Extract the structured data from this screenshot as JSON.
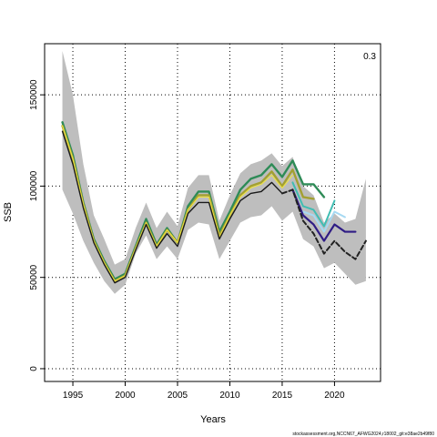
{
  "chart_data": {
    "type": "line",
    "title": "",
    "panel_label": "0.3",
    "xlabel": "Years",
    "ylabel": "SSB",
    "xlim": [
      1992.3,
      2024.4
    ],
    "ylim": [
      -7000,
      178000
    ],
    "x_ticks": [
      1995,
      2000,
      2005,
      2010,
      2015,
      2020
    ],
    "y_ticks": [
      0,
      50000,
      100000,
      150000
    ],
    "grid": "dotted",
    "legend": "none",
    "footnote": "stockassessment.org,NCCN67_AFWG2024,r18002_git:e38ae2b49f80",
    "band": {
      "color": "#bebebe",
      "years": [
        1994,
        1995,
        1996,
        1997,
        1998,
        1999,
        2000,
        2001,
        2002,
        2003,
        2004,
        2005,
        2006,
        2007,
        2008,
        2009,
        2010,
        2011,
        2012,
        2013,
        2014,
        2015,
        2016,
        2017,
        2018,
        2019,
        2020,
        2021,
        2022,
        2023
      ],
      "upper": [
        174000,
        150000,
        112000,
        84000,
        71000,
        57000,
        60000,
        77000,
        91000,
        77000,
        86000,
        78000,
        99000,
        106000,
        106000,
        81000,
        95000,
        107000,
        112000,
        114000,
        118000,
        111000,
        116000,
        100000,
        95000,
        80000,
        85000,
        80000,
        82000,
        104000
      ],
      "lower": [
        98000,
        85000,
        70000,
        58000,
        48000,
        41000,
        46000,
        63000,
        73000,
        60000,
        67000,
        60000,
        76000,
        80000,
        79000,
        60000,
        70000,
        80000,
        83000,
        84000,
        89000,
        81000,
        86000,
        71000,
        67000,
        55000,
        58000,
        52000,
        46000,
        48000
      ]
    },
    "series": [
      {
        "color": "#2e8b57",
        "width": 2.4,
        "dash": "",
        "x": [
          1994,
          1995,
          1996,
          1997,
          1998,
          1999,
          2000,
          2001,
          2002,
          2003,
          2004,
          2005,
          2006,
          2007,
          2008,
          2009,
          2010,
          2011,
          2012,
          2013,
          2014,
          2015,
          2016,
          2017,
          2018,
          2019
        ],
        "y": [
          135000,
          117000,
          91000,
          71000,
          59000,
          49000,
          52000,
          67000,
          82000,
          68000,
          77000,
          69000,
          89000,
          97000,
          97000,
          75000,
          86000,
          98000,
          104000,
          106000,
          112000,
          105000,
          114000,
          101000,
          101000,
          94000
        ]
      },
      {
        "color": "#a3a032",
        "width": 2.4,
        "dash": "",
        "x": [
          1994,
          1995,
          1996,
          1997,
          1998,
          1999,
          2000,
          2001,
          2002,
          2003,
          2004,
          2005,
          2006,
          2007,
          2008,
          2009,
          2010,
          2011,
          2012,
          2013,
          2014,
          2015,
          2016,
          2017,
          2018
        ],
        "y": [
          133000,
          115000,
          90000,
          70000,
          58000,
          48000,
          51000,
          66000,
          80000,
          67000,
          76000,
          69000,
          87000,
          95000,
          95000,
          73000,
          84000,
          95000,
          100000,
          102000,
          108000,
          100000,
          109000,
          94000,
          93000
        ]
      },
      {
        "color": "#40bdb3",
        "width": 2.0,
        "dash": "",
        "x": [
          2016,
          2017,
          2018,
          2019,
          2020
        ],
        "y": [
          102000,
          89000,
          87000,
          78000,
          92000
        ]
      },
      {
        "color": "#a6d9f2",
        "width": 2.0,
        "dash": "",
        "x": [
          2017,
          2018,
          2019,
          2020,
          2021
        ],
        "y": [
          86000,
          84000,
          75000,
          86000,
          83000
        ]
      },
      {
        "color": "#2f1c85",
        "width": 2.2,
        "dash": "",
        "x": [
          2016,
          2017,
          2018,
          2019,
          2020,
          2021,
          2022
        ],
        "y": [
          98000,
          84000,
          79000,
          70000,
          79000,
          75000,
          75000
        ]
      },
      {
        "color": "#f0e442",
        "width": 1.1,
        "dash": "",
        "x": [
          1994,
          1995,
          1996,
          1997,
          1998,
          1999,
          2000,
          2001,
          2002,
          2003,
          2004,
          2005,
          2006,
          2007,
          2008,
          2009,
          2010,
          2011,
          2012,
          2013,
          2014,
          2015,
          2016
        ],
        "y": [
          133000,
          115000,
          90000,
          70000,
          58000,
          48000,
          51000,
          66000,
          80000,
          67000,
          76000,
          69000,
          87000,
          94000,
          94000,
          72000,
          84000,
          94000,
          99000,
          101000,
          106000,
          99000,
          106000
        ]
      },
      {
        "color": "#1a1a1a",
        "width": 1.4,
        "dash": "",
        "x": [
          1994,
          1995,
          1996,
          1997,
          1998,
          1999,
          2000,
          2001,
          2002,
          2003,
          2004,
          2005,
          2006,
          2007,
          2008,
          2009,
          2010,
          2011,
          2012,
          2013,
          2014,
          2015
        ],
        "y": [
          130000,
          112000,
          88000,
          69000,
          57000,
          47000,
          50000,
          65000,
          79000,
          66000,
          74000,
          67000,
          85000,
          91000,
          91000,
          71000,
          82000,
          92000,
          96000,
          97000,
          102000,
          96000
        ]
      },
      {
        "color": "#222222",
        "width": 2.0,
        "dash": "5,3",
        "x": [
          2015,
          2016,
          2017,
          2018,
          2019,
          2020,
          2021,
          2022,
          2023
        ],
        "y": [
          96000,
          98000,
          81000,
          74000,
          63000,
          70000,
          64000,
          60000,
          70000
        ]
      }
    ]
  }
}
